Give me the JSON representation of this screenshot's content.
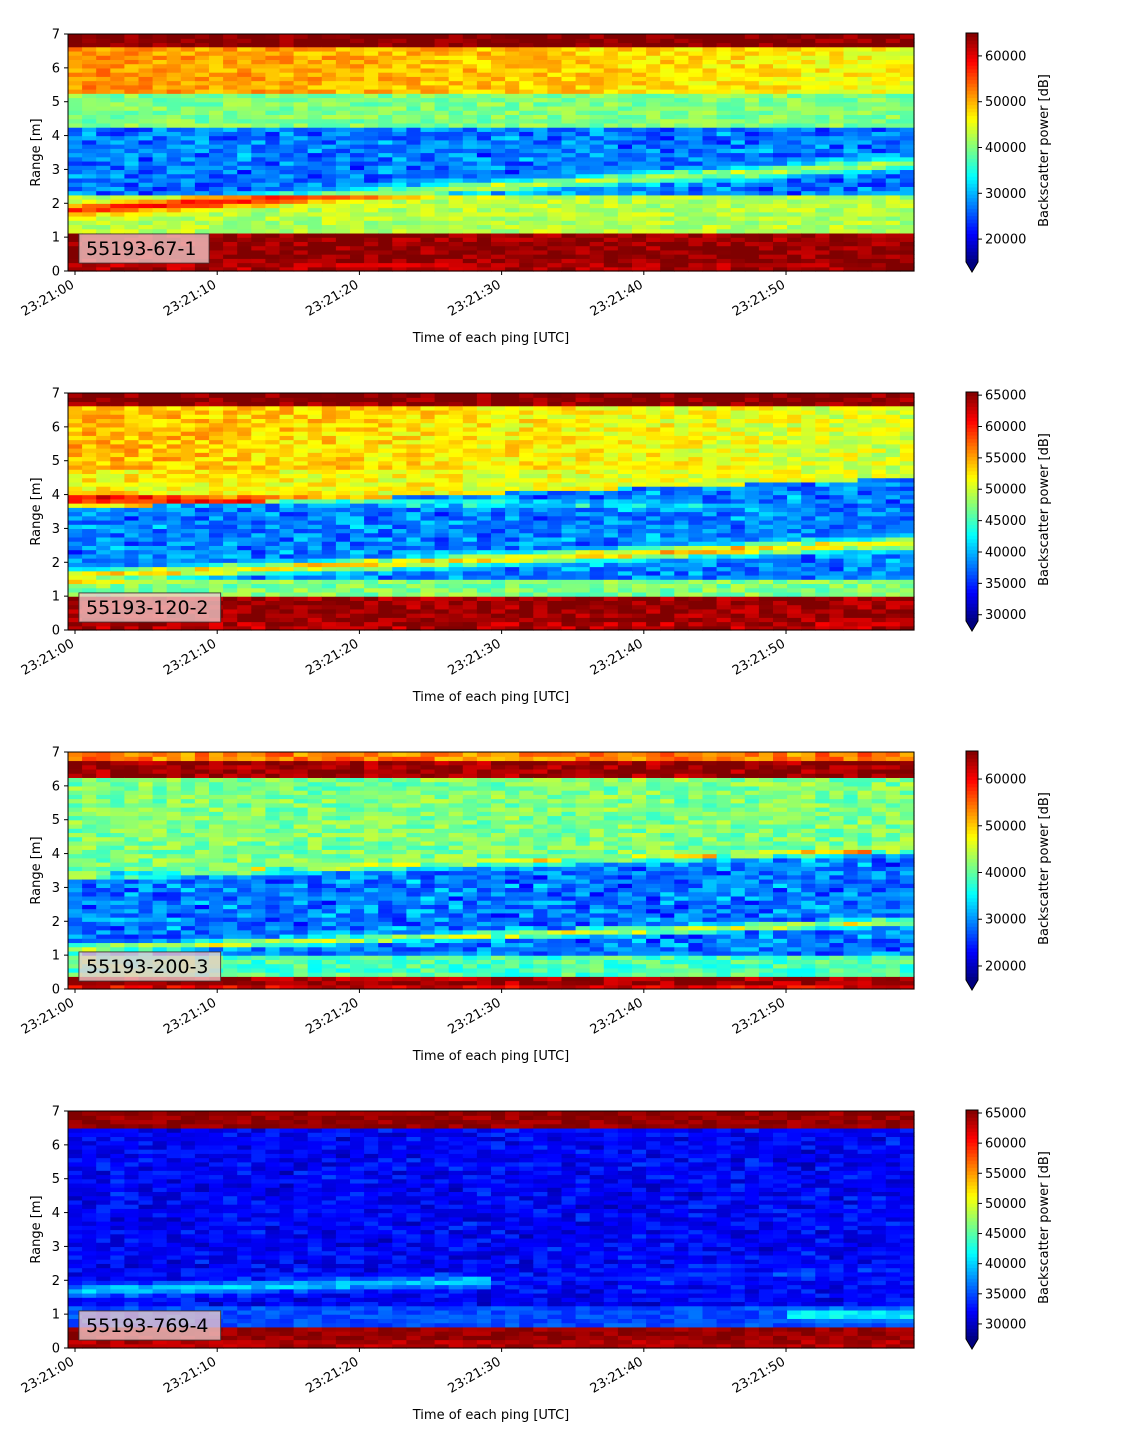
{
  "chart_data": [
    {
      "type": "heatmap",
      "label": "55193-67-1",
      "xlabel": "Time of each ping [UTC]",
      "ylabel": "Range [m]",
      "xticks": [
        "23:21:00",
        "23:21:10",
        "23:21:20",
        "23:21:30",
        "23:21:40",
        "23:21:50"
      ],
      "yticks": [
        "0",
        "1",
        "2",
        "3",
        "4",
        "5",
        "6",
        "7"
      ],
      "xlim": [
        "23:21:00",
        "23:21:59"
      ],
      "ylim": [
        0,
        7
      ],
      "colorbar": {
        "label": "Backscatter power [dB]",
        "ticks": [
          "20000",
          "30000",
          "40000",
          "50000",
          "60000"
        ],
        "range": [
          15000,
          65000
        ],
        "extend": "min",
        "colormap": "jet"
      },
      "bands_description": "Strong return near 0.2-1.1 m; bright line rising from ~1.8 m to ~3.2 m; dark layer ~2.3-4.3 m; moderate-high 4.3-6.6 m; saturated top 6.6-7 m"
    },
    {
      "type": "heatmap",
      "label": "55193-120-2",
      "xlabel": "Time of each ping [UTC]",
      "ylabel": "Range [m]",
      "xticks": [
        "23:21:00",
        "23:21:10",
        "23:21:20",
        "23:21:30",
        "23:21:40",
        "23:21:50"
      ],
      "yticks": [
        "0",
        "1",
        "2",
        "3",
        "4",
        "5",
        "6",
        "7"
      ],
      "xlim": [
        "23:21:00",
        "23:21:59"
      ],
      "ylim": [
        0,
        7
      ],
      "colorbar": {
        "label": "Backscatter power [dB]",
        "ticks": [
          "30000",
          "35000",
          "40000",
          "45000",
          "50000",
          "55000",
          "60000",
          "65000"
        ],
        "range": [
          29000,
          65500
        ],
        "extend": "min",
        "colormap": "jet"
      },
      "bands_description": "Strong return near 0.2-1.0 m; bright line rising from ~1.6 m to ~2.6 m; dark layer ~1.2-4.5 m; high 4-6.6 m; saturated top"
    },
    {
      "type": "heatmap",
      "label": "55193-200-3",
      "xlabel": "Time of each ping [UTC]",
      "ylabel": "Range [m]",
      "xticks": [
        "23:21:00",
        "23:21:10",
        "23:21:20",
        "23:21:30",
        "23:21:40",
        "23:21:50"
      ],
      "yticks": [
        "0",
        "1",
        "2",
        "3",
        "4",
        "5",
        "6",
        "7"
      ],
      "xlim": [
        "23:21:00",
        "23:21:59"
      ],
      "ylim": [
        0,
        7
      ],
      "colorbar": {
        "label": "Backscatter power [dB]",
        "ticks": [
          "20000",
          "30000",
          "40000",
          "50000",
          "60000"
        ],
        "range": [
          17000,
          66000
        ],
        "extend": "min",
        "colormap": "jet"
      },
      "bands_description": "Strong return near 0.1-0.3 m; thin line rising from ~1.2 m to ~2.0 m; dark layer ~1-4 m; moderate 4-6.3 m; saturated 6.4-7 m"
    },
    {
      "type": "heatmap",
      "label": "55193-769-4",
      "xlabel": "Time of each ping [UTC]",
      "ylabel": "Range [m]",
      "xticks": [
        "23:21:00",
        "23:21:10",
        "23:21:20",
        "23:21:30",
        "23:21:40",
        "23:21:50"
      ],
      "yticks": [
        "0",
        "1",
        "2",
        "3",
        "4",
        "5",
        "6",
        "7"
      ],
      "xlim": [
        "23:21:00",
        "23:21:59"
      ],
      "ylim": [
        0,
        7
      ],
      "colorbar": {
        "label": "Backscatter power [dB]",
        "ticks": [
          "30000",
          "35000",
          "40000",
          "45000",
          "50000",
          "55000",
          "60000",
          "65000"
        ],
        "range": [
          27500,
          65500
        ],
        "extend": "min",
        "colormap": "jet"
      },
      "bands_description": "Strong return 0.2-0.6 m; faint line rising from ~1.7 m to ~2.3 m; mostly low power elsewhere; saturated top 6.6-7 m"
    }
  ]
}
